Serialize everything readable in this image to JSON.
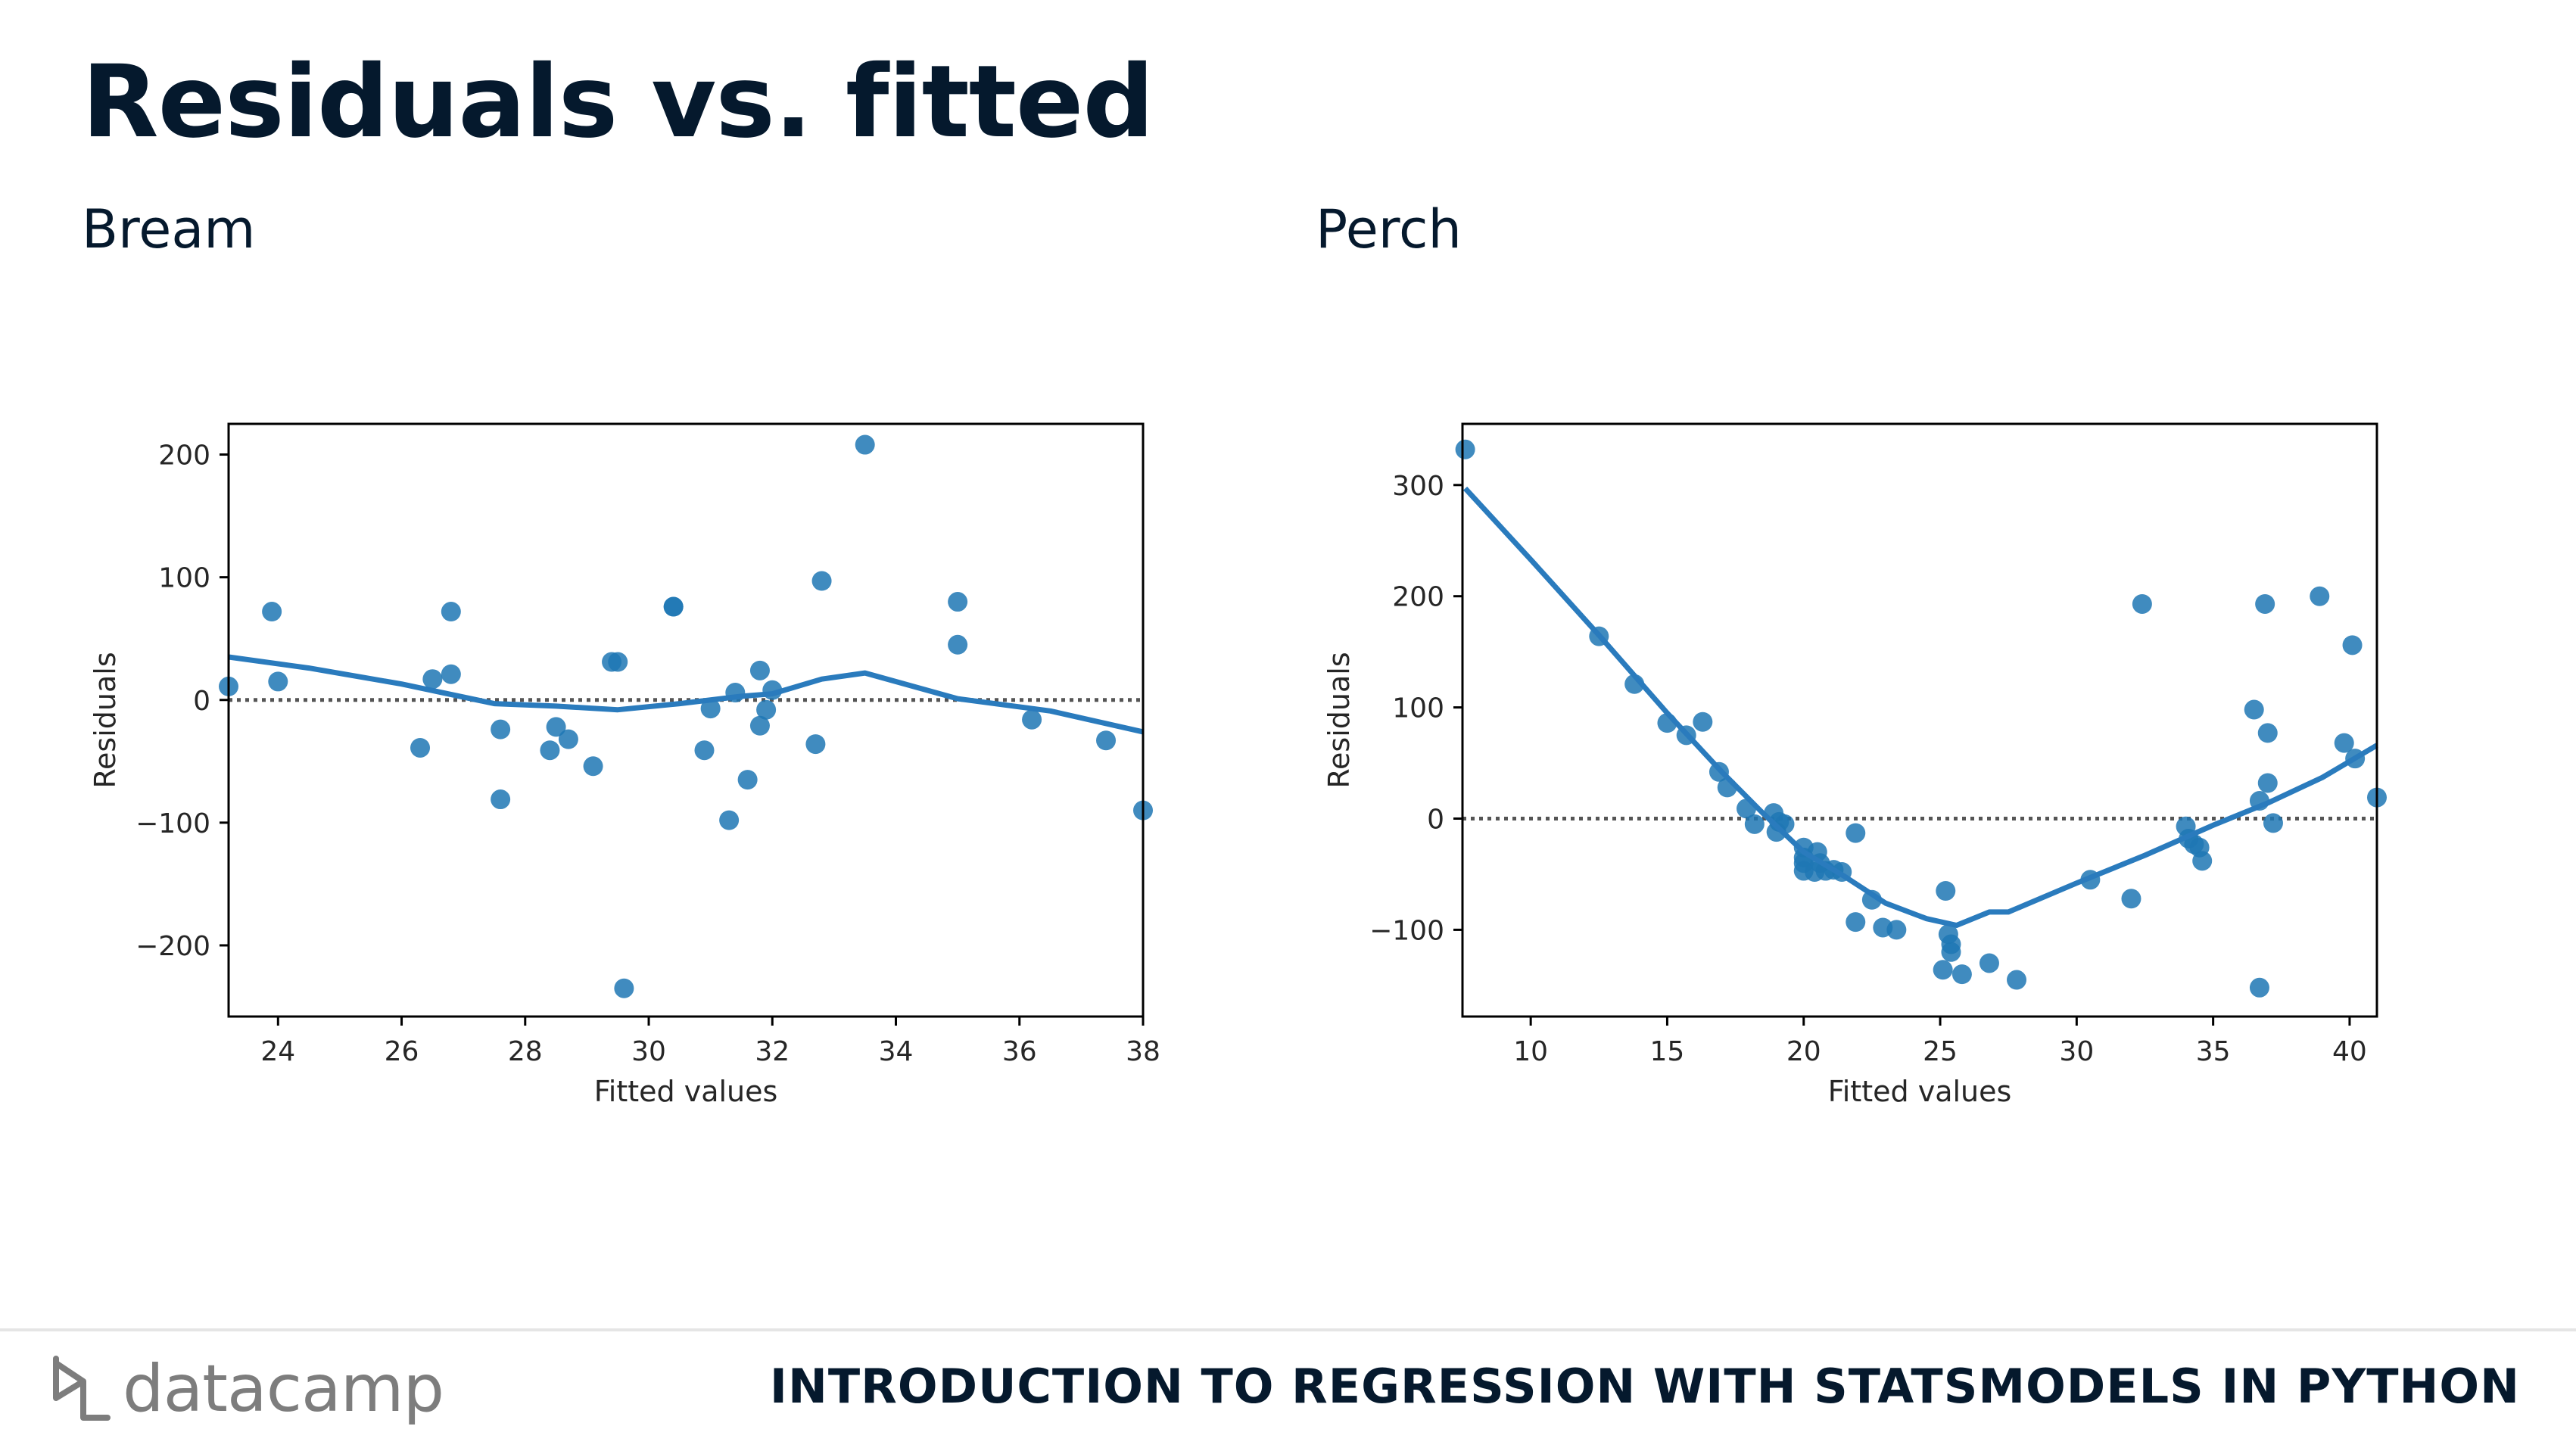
{
  "slide": {
    "title": "Residuals vs. fitted",
    "footer_brand": "datacamp",
    "footer_course": "INTRODUCTION TO REGRESSION WITH STATSMODELS IN PYTHON"
  },
  "colors": {
    "point": "#1f77b4",
    "line": "#2a7bbd",
    "zero_line": "#555555",
    "title": "#05192d"
  },
  "icons": {
    "logo": "datacamp-logo-icon"
  },
  "chart_data": [
    {
      "type": "scatter",
      "title": "Bream",
      "xlabel": "Fitted values",
      "ylabel": "Residuals",
      "xlim": [
        23.2,
        38.0
      ],
      "ylim": [
        -258,
        225
      ],
      "xticks": [
        24,
        26,
        28,
        30,
        32,
        34,
        36,
        38
      ],
      "yticks": [
        -200,
        -100,
        0,
        100,
        200
      ],
      "ytick_labels": [
        "−200",
        "−100",
        "0",
        "100",
        "200"
      ],
      "zero_line": true,
      "points": [
        [
          23.2,
          11
        ],
        [
          23.9,
          72
        ],
        [
          24.0,
          15
        ],
        [
          26.3,
          -39
        ],
        [
          26.5,
          17
        ],
        [
          26.8,
          72
        ],
        [
          26.8,
          21
        ],
        [
          27.6,
          -24
        ],
        [
          27.6,
          -81
        ],
        [
          28.4,
          -41
        ],
        [
          28.5,
          -22
        ],
        [
          28.7,
          -32
        ],
        [
          29.1,
          -54
        ],
        [
          29.4,
          31
        ],
        [
          29.5,
          31
        ],
        [
          29.6,
          -235
        ],
        [
          30.4,
          76
        ],
        [
          30.4,
          76
        ],
        [
          30.9,
          -41
        ],
        [
          31.0,
          -7
        ],
        [
          31.3,
          -98
        ],
        [
          31.4,
          6
        ],
        [
          31.6,
          -65
        ],
        [
          31.8,
          24
        ],
        [
          31.8,
          -21
        ],
        [
          31.9,
          -8
        ],
        [
          32.0,
          8
        ],
        [
          32.7,
          -36
        ],
        [
          32.8,
          97
        ],
        [
          33.5,
          208
        ],
        [
          35.0,
          80
        ],
        [
          35.0,
          45
        ],
        [
          36.2,
          -16
        ],
        [
          37.4,
          -33
        ],
        [
          38.0,
          -90
        ]
      ],
      "lowess": [
        [
          23.2,
          35
        ],
        [
          24.5,
          26
        ],
        [
          26.0,
          13
        ],
        [
          27.5,
          -3
        ],
        [
          28.5,
          -5
        ],
        [
          29.5,
          -8
        ],
        [
          30.5,
          -3
        ],
        [
          31.5,
          3
        ],
        [
          32.0,
          5
        ],
        [
          32.8,
          17
        ],
        [
          33.5,
          22
        ],
        [
          35.0,
          1
        ],
        [
          36.5,
          -9
        ],
        [
          38.0,
          -26
        ]
      ]
    },
    {
      "type": "scatter",
      "title": "Perch",
      "xlabel": "Fitted values",
      "ylabel": "Residuals",
      "xlim": [
        7.5,
        41.0
      ],
      "ylim": [
        -178,
        355
      ],
      "xticks": [
        10,
        15,
        20,
        25,
        30,
        35,
        40
      ],
      "yticks": [
        -100,
        0,
        100,
        200,
        300
      ],
      "ytick_labels": [
        "−100",
        "0",
        "100",
        "200",
        "300"
      ],
      "zero_line": true,
      "points": [
        [
          7.6,
          332
        ],
        [
          12.5,
          164
        ],
        [
          13.8,
          121
        ],
        [
          15.0,
          86
        ],
        [
          15.7,
          75
        ],
        [
          16.3,
          87
        ],
        [
          16.9,
          42
        ],
        [
          17.2,
          28
        ],
        [
          17.9,
          9
        ],
        [
          18.2,
          -5
        ],
        [
          18.9,
          5
        ],
        [
          19.0,
          -12
        ],
        [
          19.1,
          -3
        ],
        [
          19.3,
          -5
        ],
        [
          20.0,
          -26
        ],
        [
          20.0,
          -35
        ],
        [
          20.0,
          -40
        ],
        [
          20.0,
          -47
        ],
        [
          20.4,
          -48
        ],
        [
          20.5,
          -30
        ],
        [
          20.6,
          -40
        ],
        [
          20.8,
          -47
        ],
        [
          21.1,
          -46
        ],
        [
          21.4,
          -48
        ],
        [
          21.9,
          -13
        ],
        [
          21.9,
          -93
        ],
        [
          22.5,
          -73
        ],
        [
          22.9,
          -98
        ],
        [
          23.4,
          -100
        ],
        [
          25.1,
          -136
        ],
        [
          25.2,
          -65
        ],
        [
          25.3,
          -104
        ],
        [
          25.4,
          -113
        ],
        [
          25.4,
          -120
        ],
        [
          25.8,
          -140
        ],
        [
          26.8,
          -130
        ],
        [
          27.8,
          -145
        ],
        [
          30.5,
          -55
        ],
        [
          32.0,
          -72
        ],
        [
          32.4,
          193
        ],
        [
          34.0,
          -7
        ],
        [
          34.1,
          -18
        ],
        [
          34.3,
          -23
        ],
        [
          34.5,
          -26
        ],
        [
          34.6,
          -38
        ],
        [
          36.5,
          98
        ],
        [
          36.7,
          16
        ],
        [
          36.7,
          -152
        ],
        [
          36.9,
          193
        ],
        [
          37.0,
          32
        ],
        [
          37.0,
          77
        ],
        [
          37.2,
          -4
        ],
        [
          38.9,
          200
        ],
        [
          39.8,
          68
        ],
        [
          40.1,
          156
        ],
        [
          40.2,
          54
        ],
        [
          41.0,
          19
        ]
      ],
      "lowess": [
        [
          7.6,
          297
        ],
        [
          10.0,
          233
        ],
        [
          12.5,
          165
        ],
        [
          15.0,
          95
        ],
        [
          17.0,
          42
        ],
        [
          18.5,
          5
        ],
        [
          20.0,
          -30
        ],
        [
          21.5,
          -52
        ],
        [
          23.0,
          -76
        ],
        [
          24.5,
          -90
        ],
        [
          25.6,
          -96
        ],
        [
          26.8,
          -84
        ],
        [
          27.5,
          -84
        ],
        [
          30.0,
          -58
        ],
        [
          32.5,
          -33
        ],
        [
          35.0,
          -6
        ],
        [
          37.0,
          14
        ],
        [
          39.0,
          37
        ],
        [
          41.0,
          66
        ]
      ]
    }
  ]
}
